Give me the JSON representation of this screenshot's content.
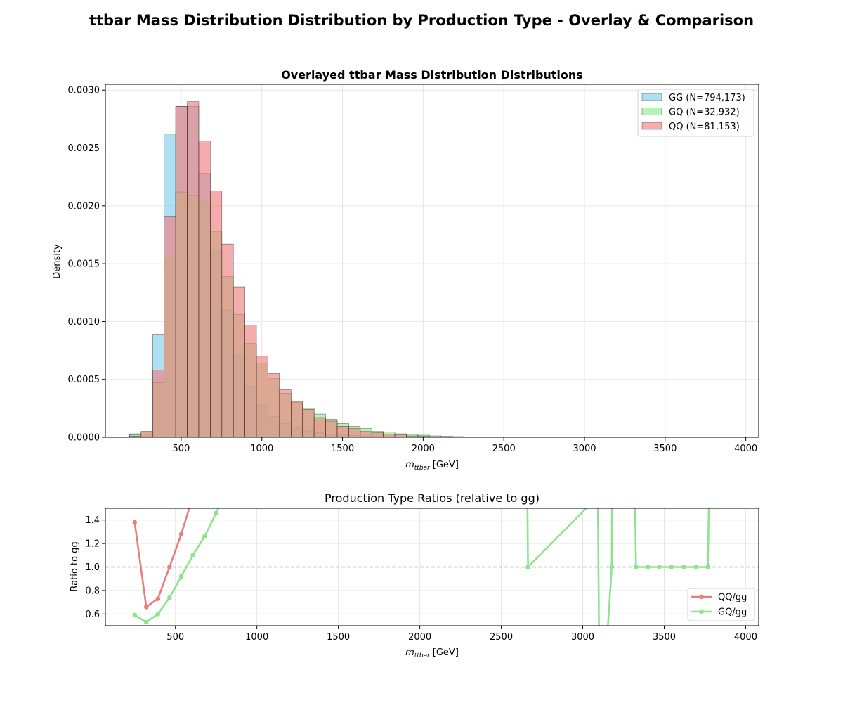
{
  "figure": {
    "suptitle": "ttbar Mass Distribution Distribution by Production Type - Overlay & Comparison"
  },
  "colors": {
    "gg": "#87CEEB",
    "gq": "#90EE90",
    "qq": "#F08080",
    "qq_ratio_line": "#E87F7F",
    "gq_ratio_line": "#8FE38F"
  },
  "chart_data": [
    {
      "type": "histogram",
      "title": "Overlayed ttbar Mass Distribution Distributions",
      "xlabel": "m_{ttbar} [GeV]",
      "xlabel_main": "m",
      "xlabel_sub": "ttbar",
      "xlabel_unit": "[GeV]",
      "ylabel": "Density",
      "xlim": [
        30,
        4080
      ],
      "ylim": [
        0,
        0.00305
      ],
      "xticks": [
        500,
        1000,
        1500,
        2000,
        2500,
        3000,
        3500,
        4000
      ],
      "yticks": [
        0,
        0.0005,
        0.001,
        0.0015,
        0.002,
        0.0025,
        0.003
      ],
      "ytick_labels": [
        "0.0000",
        "0.0005",
        "0.0010",
        "0.0015",
        "0.0020",
        "0.0025",
        "0.0030"
      ],
      "grid": true,
      "legend_position": "top-right",
      "legend": [
        "GG (N=794,173)",
        "GQ (N=32,932)",
        "QQ (N=81,153)"
      ],
      "series": [
        {
          "key": "gg",
          "name": "GG (N=794,173)",
          "bin_start": 180,
          "bin_width": 71.5,
          "values": [
            3e-05,
            1e-05,
            0.00089,
            0.00262,
            0.00286,
            0.00286,
            0.00228,
            0.00162,
            0.0011,
            0.00072,
            0.00044,
            0.00028,
            0.00018,
            0.00012,
            8e-05,
            5.5e-05,
            4e-05,
            2.8e-05,
            2e-05,
            1.4e-05,
            1e-05,
            7e-06,
            5e-06,
            3e-06,
            2e-06,
            1.5e-06,
            1e-06,
            8e-07,
            5e-07
          ]
        },
        {
          "key": "gq",
          "name": "GQ (N=32,932)",
          "bin_start": 180,
          "bin_width": 71.5,
          "values": [
            2e-05,
            5e-05,
            0.00047,
            0.00156,
            0.00212,
            0.00209,
            0.00205,
            0.00178,
            0.00139,
            0.00106,
            0.00081,
            0.00064,
            0.00051,
            0.00038,
            0.0003,
            0.00025,
            0.0002,
            0.000155,
            0.00012,
            9.5e-05,
            7.5e-05,
            5e-05,
            4.5e-05,
            3e-05,
            2.5e-05,
            1.8e-05,
            1.2e-05,
            1e-05,
            6e-06,
            4e-06,
            3e-06,
            2e-06
          ]
        },
        {
          "key": "qq",
          "name": "QQ (N=81,153)",
          "bin_start": 180,
          "bin_width": 71.5,
          "values": [
            1e-05,
            5e-05,
            0.00058,
            0.00191,
            0.00286,
            0.0029,
            0.00256,
            0.00213,
            0.00167,
            0.0013,
            0.00097,
            0.0007,
            0.00055,
            0.00041,
            0.00031,
            0.00024,
            0.00017,
            0.00014,
            9.5e-05,
            7.5e-05,
            5e-05,
            3.8e-05,
            2.8e-05,
            2e-05,
            1.2e-05,
            8e-06,
            5e-06,
            3e-06
          ]
        }
      ]
    },
    {
      "type": "line",
      "title": "Production Type Ratios (relative to gg)",
      "xlabel": "m_{ttbar} [GeV]",
      "xlabel_main": "m",
      "xlabel_sub": "ttbar",
      "xlabel_unit": "[GeV]",
      "ylabel": "Ratio to gg",
      "xlim": [
        70,
        4080
      ],
      "ylim": [
        0.5,
        1.5
      ],
      "xticks": [
        500,
        1000,
        1500,
        2000,
        2500,
        3000,
        3500,
        4000
      ],
      "yticks": [
        0.6,
        0.8,
        1.0,
        1.2,
        1.4
      ],
      "ytick_labels": [
        "0.6",
        "0.8",
        "1.0",
        "1.2",
        "1.4"
      ],
      "reference_line": 1.0,
      "grid": true,
      "legend_position": "lower-right",
      "legend": [
        "QQ/gg",
        "GQ/gg"
      ],
      "series": [
        {
          "key": "qq_ratio",
          "name": "QQ/gg",
          "x": [
            250,
            321,
            393,
            464,
            536,
            607
          ],
          "y": [
            1.38,
            0.66,
            0.73,
            1.0,
            1.28,
            1.6
          ]
        },
        {
          "key": "gq_ratio",
          "name": "GQ/gg",
          "x": [
            250,
            321,
            393,
            464,
            536,
            607,
            679,
            750,
            800,
            2660,
            2664,
            3093,
            3100,
            3150,
            3178,
            3180,
            3320,
            3327,
            3400,
            3470,
            3545,
            3620,
            3695,
            3768,
            3775
          ],
          "y": [
            0.59,
            0.53,
            0.6,
            0.74,
            0.92,
            1.1,
            1.26,
            1.46,
            1.6,
            1.6,
            1.0,
            1.6,
            0.4,
            0.4,
            1.0,
            1.6,
            1.6,
            1.0,
            1.0,
            1.0,
            1.0,
            1.0,
            1.0,
            1.0,
            1.6
          ],
          "markers": [
            true,
            true,
            true,
            true,
            true,
            true,
            true,
            true,
            false,
            false,
            true,
            false,
            false,
            false,
            true,
            false,
            false,
            true,
            true,
            true,
            true,
            true,
            true,
            true,
            false
          ]
        }
      ]
    }
  ]
}
